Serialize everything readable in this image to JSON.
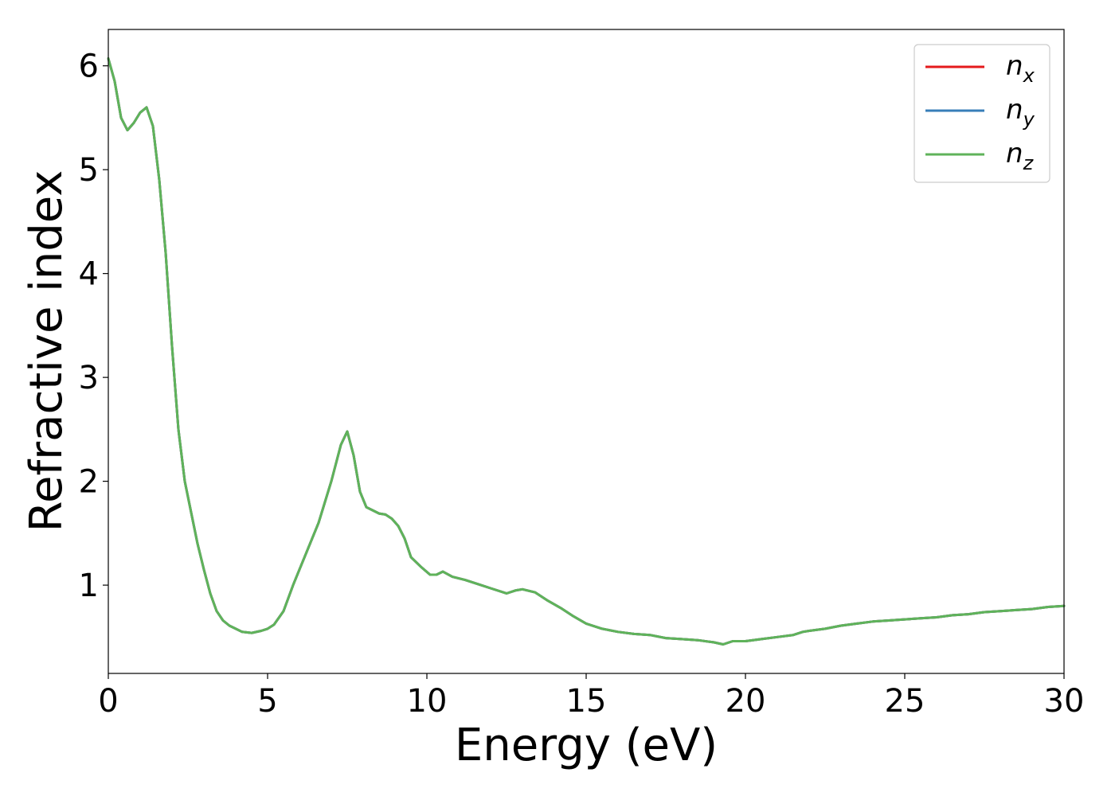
{
  "chart_data": {
    "type": "line",
    "title": "",
    "xlabel": "Energy (eV)",
    "ylabel": "Refractive index",
    "xlim": [
      0,
      30
    ],
    "ylim": [
      0.15,
      6.35
    ],
    "xticks": [
      0,
      5,
      10,
      15,
      20,
      25,
      30
    ],
    "yticks": [
      1,
      2,
      3,
      4,
      5,
      6
    ],
    "grid": false,
    "legend_position": "top-right",
    "series": [
      {
        "name": "n",
        "subscript": "x",
        "color": "#e41a1c",
        "x": [
          0,
          0.2,
          0.4,
          0.6,
          0.8,
          1.0,
          1.2,
          1.4,
          1.6,
          1.8,
          2.0,
          2.2,
          2.4,
          2.6,
          2.8,
          3.0,
          3.2,
          3.4,
          3.6,
          3.8,
          4.0,
          4.2,
          4.5,
          4.8,
          5.0,
          5.2,
          5.5,
          5.8,
          6.2,
          6.6,
          7.0,
          7.3,
          7.5,
          7.7,
          7.9,
          8.1,
          8.3,
          8.5,
          8.7,
          8.9,
          9.1,
          9.3,
          9.5,
          9.8,
          10.1,
          10.3,
          10.5,
          10.8,
          11.2,
          11.7,
          12.0,
          12.5,
          12.8,
          13.0,
          13.4,
          13.8,
          14.2,
          14.6,
          15.0,
          15.5,
          16.0,
          16.5,
          17.0,
          17.5,
          18.0,
          18.5,
          19.0,
          19.3,
          19.6,
          20.0,
          20.5,
          21.0,
          21.5,
          21.8,
          22.0,
          22.5,
          23.0,
          23.5,
          24.0,
          24.5,
          25.0,
          25.5,
          26.0,
          26.5,
          27.0,
          27.5,
          28.0,
          28.5,
          29.0,
          29.5,
          30.0
        ],
        "values": [
          6.07,
          5.85,
          5.5,
          5.38,
          5.45,
          5.55,
          5.6,
          5.42,
          4.9,
          4.2,
          3.3,
          2.5,
          2.0,
          1.7,
          1.4,
          1.15,
          0.92,
          0.75,
          0.66,
          0.61,
          0.58,
          0.55,
          0.54,
          0.56,
          0.58,
          0.62,
          0.75,
          1.0,
          1.3,
          1.6,
          2.0,
          2.35,
          2.48,
          2.25,
          1.9,
          1.75,
          1.72,
          1.69,
          1.68,
          1.64,
          1.57,
          1.45,
          1.27,
          1.18,
          1.1,
          1.1,
          1.13,
          1.08,
          1.05,
          1.0,
          0.97,
          0.92,
          0.95,
          0.96,
          0.93,
          0.85,
          0.78,
          0.7,
          0.63,
          0.58,
          0.55,
          0.53,
          0.52,
          0.49,
          0.48,
          0.47,
          0.45,
          0.43,
          0.46,
          0.46,
          0.48,
          0.5,
          0.52,
          0.55,
          0.56,
          0.58,
          0.61,
          0.63,
          0.65,
          0.66,
          0.67,
          0.68,
          0.69,
          0.71,
          0.72,
          0.74,
          0.75,
          0.76,
          0.77,
          0.79,
          0.8
        ]
      },
      {
        "name": "n",
        "subscript": "y",
        "color": "#377eb8",
        "x": [
          0,
          0.2,
          0.4,
          0.6,
          0.8,
          1.0,
          1.2,
          1.4,
          1.6,
          1.8,
          2.0,
          2.2,
          2.4,
          2.6,
          2.8,
          3.0,
          3.2,
          3.4,
          3.6,
          3.8,
          4.0,
          4.2,
          4.5,
          4.8,
          5.0,
          5.2,
          5.5,
          5.8,
          6.2,
          6.6,
          7.0,
          7.3,
          7.5,
          7.7,
          7.9,
          8.1,
          8.3,
          8.5,
          8.7,
          8.9,
          9.1,
          9.3,
          9.5,
          9.8,
          10.1,
          10.3,
          10.5,
          10.8,
          11.2,
          11.7,
          12.0,
          12.5,
          12.8,
          13.0,
          13.4,
          13.8,
          14.2,
          14.6,
          15.0,
          15.5,
          16.0,
          16.5,
          17.0,
          17.5,
          18.0,
          18.5,
          19.0,
          19.3,
          19.6,
          20.0,
          20.5,
          21.0,
          21.5,
          21.8,
          22.0,
          22.5,
          23.0,
          23.5,
          24.0,
          24.5,
          25.0,
          25.5,
          26.0,
          26.5,
          27.0,
          27.5,
          28.0,
          28.5,
          29.0,
          29.5,
          30.0
        ],
        "values": [
          6.07,
          5.85,
          5.5,
          5.38,
          5.45,
          5.55,
          5.6,
          5.42,
          4.9,
          4.2,
          3.3,
          2.5,
          2.0,
          1.7,
          1.4,
          1.15,
          0.92,
          0.75,
          0.66,
          0.61,
          0.58,
          0.55,
          0.54,
          0.56,
          0.58,
          0.62,
          0.75,
          1.0,
          1.3,
          1.6,
          2.0,
          2.35,
          2.48,
          2.25,
          1.9,
          1.75,
          1.72,
          1.69,
          1.68,
          1.64,
          1.57,
          1.45,
          1.27,
          1.18,
          1.1,
          1.1,
          1.13,
          1.08,
          1.05,
          1.0,
          0.97,
          0.92,
          0.95,
          0.96,
          0.93,
          0.85,
          0.78,
          0.7,
          0.63,
          0.58,
          0.55,
          0.53,
          0.52,
          0.49,
          0.48,
          0.47,
          0.45,
          0.43,
          0.46,
          0.46,
          0.48,
          0.5,
          0.52,
          0.55,
          0.56,
          0.58,
          0.61,
          0.63,
          0.65,
          0.66,
          0.67,
          0.68,
          0.69,
          0.71,
          0.72,
          0.74,
          0.75,
          0.76,
          0.77,
          0.79,
          0.8
        ]
      },
      {
        "name": "n",
        "subscript": "z",
        "color": "#5fb35a",
        "x": [
          0,
          0.2,
          0.4,
          0.6,
          0.8,
          1.0,
          1.2,
          1.4,
          1.6,
          1.8,
          2.0,
          2.2,
          2.4,
          2.6,
          2.8,
          3.0,
          3.2,
          3.4,
          3.6,
          3.8,
          4.0,
          4.2,
          4.5,
          4.8,
          5.0,
          5.2,
          5.5,
          5.8,
          6.2,
          6.6,
          7.0,
          7.3,
          7.5,
          7.7,
          7.9,
          8.1,
          8.3,
          8.5,
          8.7,
          8.9,
          9.1,
          9.3,
          9.5,
          9.8,
          10.1,
          10.3,
          10.5,
          10.8,
          11.2,
          11.7,
          12.0,
          12.5,
          12.8,
          13.0,
          13.4,
          13.8,
          14.2,
          14.6,
          15.0,
          15.5,
          16.0,
          16.5,
          17.0,
          17.5,
          18.0,
          18.5,
          19.0,
          19.3,
          19.6,
          20.0,
          20.5,
          21.0,
          21.5,
          21.8,
          22.0,
          22.5,
          23.0,
          23.5,
          24.0,
          24.5,
          25.0,
          25.5,
          26.0,
          26.5,
          27.0,
          27.5,
          28.0,
          28.5,
          29.0,
          29.5,
          30.0
        ],
        "values": [
          6.07,
          5.85,
          5.5,
          5.38,
          5.45,
          5.55,
          5.6,
          5.42,
          4.9,
          4.2,
          3.3,
          2.5,
          2.0,
          1.7,
          1.4,
          1.15,
          0.92,
          0.75,
          0.66,
          0.61,
          0.58,
          0.55,
          0.54,
          0.56,
          0.58,
          0.62,
          0.75,
          1.0,
          1.3,
          1.6,
          2.0,
          2.35,
          2.48,
          2.25,
          1.9,
          1.75,
          1.72,
          1.69,
          1.68,
          1.64,
          1.57,
          1.45,
          1.27,
          1.18,
          1.1,
          1.1,
          1.13,
          1.08,
          1.05,
          1.0,
          0.97,
          0.92,
          0.95,
          0.96,
          0.93,
          0.85,
          0.78,
          0.7,
          0.63,
          0.58,
          0.55,
          0.53,
          0.52,
          0.49,
          0.48,
          0.47,
          0.45,
          0.43,
          0.46,
          0.46,
          0.48,
          0.5,
          0.52,
          0.55,
          0.56,
          0.58,
          0.61,
          0.63,
          0.65,
          0.66,
          0.67,
          0.68,
          0.69,
          0.71,
          0.72,
          0.74,
          0.75,
          0.76,
          0.77,
          0.79,
          0.8
        ]
      }
    ]
  }
}
